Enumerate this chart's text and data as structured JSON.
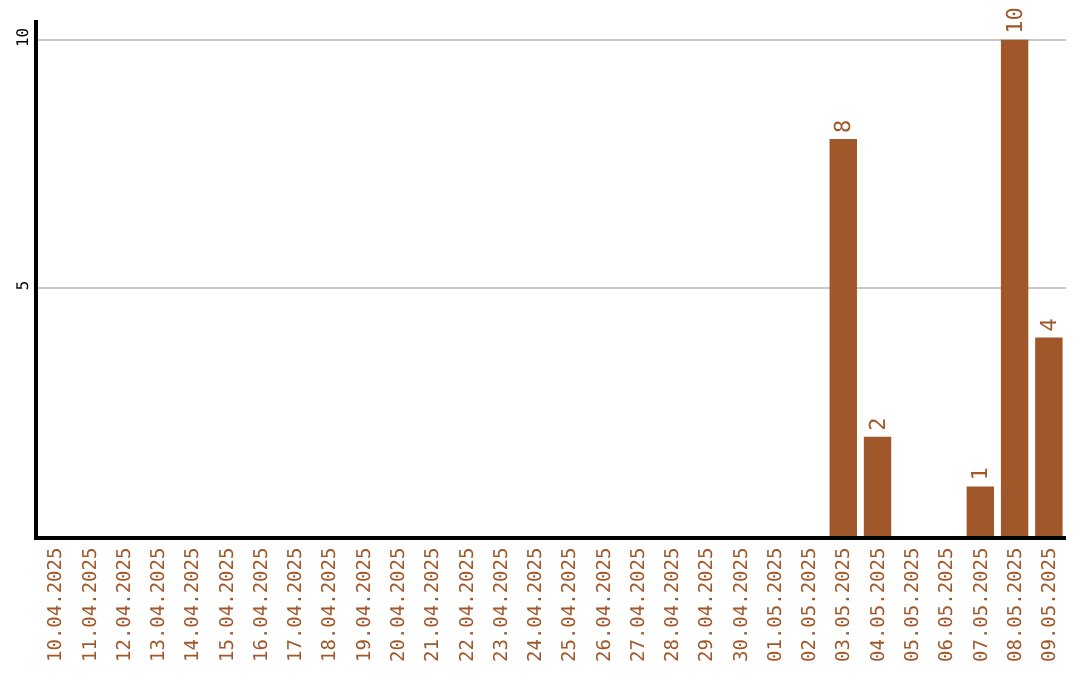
{
  "chart_data": {
    "type": "bar",
    "categories": [
      "10.04.2025",
      "11.04.2025",
      "12.04.2025",
      "13.04.2025",
      "14.04.2025",
      "15.04.2025",
      "16.04.2025",
      "17.04.2025",
      "18.04.2025",
      "19.04.2025",
      "20.04.2025",
      "21.04.2025",
      "22.04.2025",
      "23.04.2025",
      "24.04.2025",
      "25.04.2025",
      "26.04.2025",
      "27.04.2025",
      "28.04.2025",
      "29.04.2025",
      "30.04.2025",
      "01.05.2025",
      "02.05.2025",
      "03.05.2025",
      "04.05.2025",
      "05.05.2025",
      "06.05.2025",
      "07.05.2025",
      "08.05.2025",
      "09.05.2025"
    ],
    "values": [
      0,
      0,
      0,
      0,
      0,
      0,
      0,
      0,
      0,
      0,
      0,
      0,
      0,
      0,
      0,
      0,
      0,
      0,
      0,
      0,
      0,
      0,
      0,
      8,
      2,
      0,
      0,
      1,
      10,
      4
    ],
    "value_labels": [
      null,
      null,
      null,
      null,
      null,
      null,
      null,
      null,
      null,
      null,
      null,
      null,
      null,
      null,
      null,
      null,
      null,
      null,
      null,
      null,
      null,
      null,
      null,
      "8",
      "2",
      null,
      null,
      "1",
      "10",
      "4"
    ],
    "color": "#a0572a",
    "ylim": [
      0,
      10.4
    ],
    "yticks": [
      5,
      10
    ],
    "grid": "y"
  }
}
